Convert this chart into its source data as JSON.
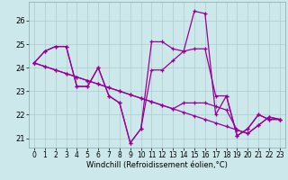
{
  "xlabel": "Windchill (Refroidissement éolien,°C)",
  "background_color": "#cce8ea",
  "grid_color": "#aacccc",
  "line_color": "#990099",
  "x_ticks": [
    0,
    1,
    2,
    3,
    4,
    5,
    6,
    7,
    8,
    9,
    10,
    11,
    12,
    13,
    14,
    15,
    16,
    17,
    18,
    19,
    20,
    21,
    22,
    23
  ],
  "y_ticks": [
    21,
    22,
    23,
    24,
    25,
    26
  ],
  "ylim": [
    20.6,
    26.8
  ],
  "xlim": [
    -0.5,
    23.5
  ],
  "series": [
    [
      24.2,
      24.7,
      24.9,
      24.9,
      23.2,
      23.2,
      24.0,
      22.8,
      22.5,
      20.8,
      21.4,
      25.1,
      25.1,
      24.8,
      24.7,
      26.4,
      26.3,
      22.0,
      22.8,
      21.1,
      21.4,
      22.0,
      21.8,
      21.8
    ],
    [
      24.2,
      24.7,
      24.9,
      24.9,
      23.2,
      23.2,
      24.0,
      22.8,
      22.5,
      20.8,
      21.4,
      23.9,
      23.9,
      24.3,
      24.7,
      24.8,
      24.8,
      22.8,
      22.8,
      21.1,
      21.4,
      22.0,
      21.8,
      21.8
    ],
    [
      24.2,
      24.05,
      23.9,
      23.75,
      23.6,
      23.45,
      23.3,
      23.15,
      23.0,
      22.85,
      22.7,
      22.55,
      22.4,
      22.25,
      22.1,
      21.95,
      21.8,
      21.65,
      21.5,
      21.35,
      21.2,
      21.55,
      21.9,
      21.8
    ],
    [
      24.2,
      24.05,
      23.9,
      23.75,
      23.6,
      23.45,
      23.3,
      23.15,
      23.0,
      22.85,
      22.7,
      22.55,
      22.4,
      22.25,
      22.5,
      22.5,
      22.5,
      22.35,
      22.2,
      21.35,
      21.2,
      21.55,
      21.9,
      21.8
    ]
  ]
}
